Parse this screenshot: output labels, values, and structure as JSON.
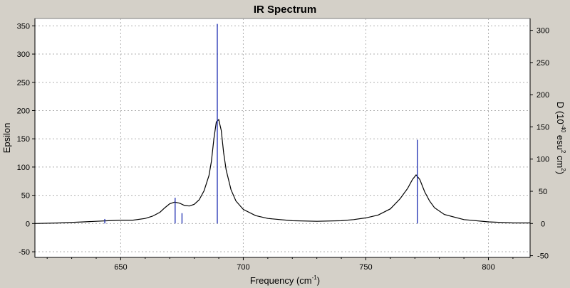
{
  "chart_data": {
    "type": "line",
    "title": "IR Spectrum",
    "xlabel_main": "Frequency (cm",
    "xlabel_sup": "-1",
    "xlabel_end": ")",
    "ylabel_left": "Epsilon",
    "ylabel_right_parts": [
      "D (10",
      "-40",
      " esu",
      "2",
      " cm",
      "2",
      ")"
    ],
    "xlim": [
      615,
      817
    ],
    "ylim_left": [
      -60,
      363
    ],
    "ylim_right": [
      -52.7,
      318.4
    ],
    "x_ticks": [
      650,
      700,
      750,
      800
    ],
    "y_ticks_left": [
      -50,
      0,
      50,
      100,
      150,
      200,
      250,
      300,
      350
    ],
    "y_ticks_right": [
      -50,
      0,
      50,
      100,
      150,
      200,
      250,
      300
    ],
    "grid": true,
    "series": [
      {
        "type": "line",
        "color": "#000000",
        "points": [
          [
            615,
            0
          ],
          [
            625,
            1
          ],
          [
            635,
            3
          ],
          [
            640,
            4
          ],
          [
            645,
            5
          ],
          [
            650,
            6
          ],
          [
            655,
            6
          ],
          [
            660,
            9
          ],
          [
            663,
            13
          ],
          [
            666,
            20
          ],
          [
            668,
            28
          ],
          [
            670,
            35
          ],
          [
            672,
            38
          ],
          [
            674,
            36
          ],
          [
            676,
            32
          ],
          [
            678,
            31
          ],
          [
            680,
            34
          ],
          [
            682,
            42
          ],
          [
            684,
            58
          ],
          [
            686,
            85
          ],
          [
            687,
            110
          ],
          [
            688,
            150
          ],
          [
            689,
            180
          ],
          [
            690,
            184
          ],
          [
            691,
            165
          ],
          [
            692,
            125
          ],
          [
            693,
            95
          ],
          [
            695,
            60
          ],
          [
            697,
            40
          ],
          [
            700,
            25
          ],
          [
            705,
            14
          ],
          [
            710,
            9
          ],
          [
            720,
            5
          ],
          [
            730,
            4
          ],
          [
            740,
            5
          ],
          [
            745,
            7
          ],
          [
            750,
            10
          ],
          [
            755,
            15
          ],
          [
            760,
            26
          ],
          [
            764,
            44
          ],
          [
            767,
            62
          ],
          [
            769,
            78
          ],
          [
            770.5,
            86
          ],
          [
            772,
            78
          ],
          [
            774,
            56
          ],
          [
            776,
            40
          ],
          [
            778,
            28
          ],
          [
            782,
            16
          ],
          [
            790,
            7
          ],
          [
            800,
            3
          ],
          [
            810,
            1
          ],
          [
            817,
            1
          ]
        ]
      },
      {
        "type": "stick",
        "color": "#1a2ab0",
        "sticks": [
          [
            643.5,
            7
          ],
          [
            672.2,
            40
          ],
          [
            675,
            16
          ],
          [
            689.4,
            310
          ],
          [
            771,
            130
          ]
        ]
      }
    ]
  }
}
